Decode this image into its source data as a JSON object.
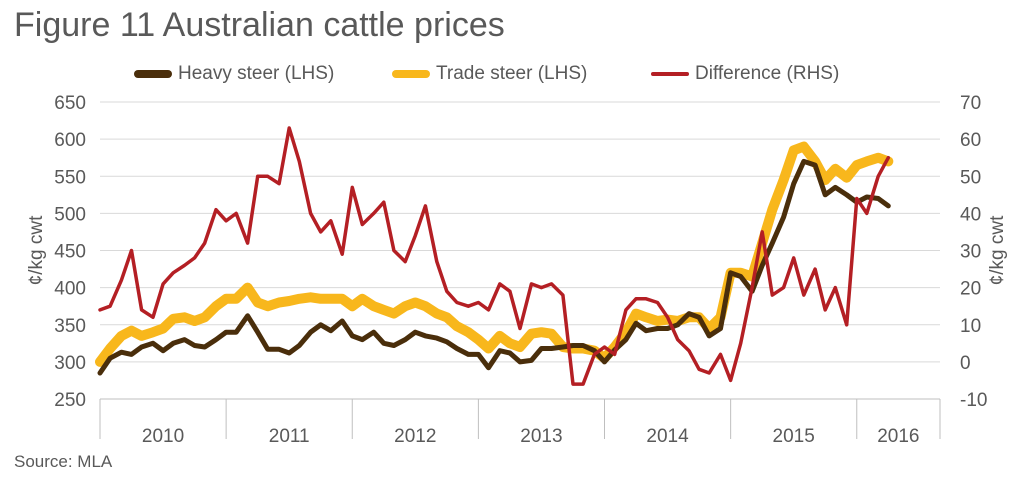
{
  "title": "Figure 11 Australian cattle prices",
  "source": "Source: MLA",
  "chart_data": {
    "type": "line",
    "title": "Figure 11 Australian cattle prices",
    "ylabel_left": "¢/kg cwt",
    "ylabel_right": "¢/kg cwt",
    "ylim_left": [
      250,
      650
    ],
    "ylim_right": [
      -10,
      70
    ],
    "yticks_left": [
      "250",
      "300",
      "350",
      "400",
      "450",
      "500",
      "550",
      "600",
      "650"
    ],
    "yticks_right": [
      "-10",
      "0",
      "10",
      "20",
      "30",
      "40",
      "50",
      "60",
      "70"
    ],
    "x_categories": [
      "2010",
      "2011",
      "2012",
      "2013",
      "2014",
      "2015",
      "2016"
    ],
    "x_range": [
      2010.0,
      2016.66
    ],
    "grid": true,
    "legend_position": "top",
    "series": [
      {
        "name": "Heavy steer (LHS)",
        "axis": "left",
        "color": "#4a2e0b",
        "x": [
          2010.0,
          2010.08,
          2010.17,
          2010.25,
          2010.33,
          2010.42,
          2010.5,
          2010.58,
          2010.67,
          2010.75,
          2010.83,
          2010.92,
          2011.0,
          2011.08,
          2011.17,
          2011.25,
          2011.33,
          2011.42,
          2011.5,
          2011.58,
          2011.67,
          2011.75,
          2011.83,
          2011.92,
          2012.0,
          2012.08,
          2012.17,
          2012.25,
          2012.33,
          2012.42,
          2012.5,
          2012.58,
          2012.67,
          2012.75,
          2012.83,
          2012.92,
          2013.0,
          2013.08,
          2013.17,
          2013.25,
          2013.33,
          2013.42,
          2013.5,
          2013.58,
          2013.67,
          2013.75,
          2013.83,
          2013.92,
          2014.0,
          2014.08,
          2014.17,
          2014.25,
          2014.33,
          2014.42,
          2014.5,
          2014.58,
          2014.67,
          2014.75,
          2014.83,
          2014.92,
          2015.0,
          2015.08,
          2015.17,
          2015.25,
          2015.33,
          2015.42,
          2015.5,
          2015.58,
          2015.67,
          2015.75,
          2015.83,
          2015.92,
          2016.0,
          2016.08,
          2016.17,
          2016.25
        ],
        "values": [
          285,
          305,
          313,
          310,
          320,
          325,
          315,
          325,
          330,
          322,
          320,
          330,
          340,
          340,
          362,
          340,
          317,
          317,
          312,
          322,
          340,
          350,
          342,
          355,
          335,
          330,
          340,
          325,
          322,
          330,
          340,
          335,
          332,
          327,
          318,
          310,
          310,
          292,
          315,
          312,
          300,
          302,
          318,
          318,
          320,
          322,
          322,
          315,
          300,
          316,
          330,
          352,
          342,
          345,
          345,
          350,
          365,
          360,
          335,
          345,
          420,
          415,
          395,
          430,
          460,
          495,
          540,
          570,
          565,
          525,
          535,
          525,
          515,
          522,
          520,
          510
        ]
      },
      {
        "name": "Trade steer (LHS)",
        "axis": "left",
        "color": "#f8b71c",
        "x": [
          2010.0,
          2010.08,
          2010.17,
          2010.25,
          2010.33,
          2010.42,
          2010.5,
          2010.58,
          2010.67,
          2010.75,
          2010.83,
          2010.92,
          2011.0,
          2011.08,
          2011.17,
          2011.25,
          2011.33,
          2011.42,
          2011.5,
          2011.58,
          2011.67,
          2011.75,
          2011.83,
          2011.92,
          2012.0,
          2012.08,
          2012.17,
          2012.25,
          2012.33,
          2012.42,
          2012.5,
          2012.58,
          2012.67,
          2012.75,
          2012.83,
          2012.92,
          2013.0,
          2013.08,
          2013.17,
          2013.25,
          2013.33,
          2013.42,
          2013.5,
          2013.58,
          2013.67,
          2013.75,
          2013.83,
          2013.92,
          2014.0,
          2014.08,
          2014.17,
          2014.25,
          2014.33,
          2014.42,
          2014.5,
          2014.58,
          2014.67,
          2014.75,
          2014.83,
          2014.92,
          2015.0,
          2015.08,
          2015.17,
          2015.25,
          2015.33,
          2015.42,
          2015.5,
          2015.58,
          2015.67,
          2015.75,
          2015.83,
          2015.92,
          2016.0,
          2016.08,
          2016.17,
          2016.25
        ],
        "values": [
          300,
          318,
          335,
          342,
          335,
          340,
          345,
          358,
          360,
          355,
          360,
          375,
          385,
          385,
          400,
          380,
          375,
          380,
          382,
          385,
          387,
          385,
          385,
          385,
          375,
          385,
          375,
          370,
          365,
          375,
          380,
          375,
          365,
          360,
          348,
          340,
          330,
          318,
          335,
          325,
          320,
          338,
          340,
          338,
          320,
          318,
          318,
          315,
          305,
          320,
          340,
          365,
          360,
          355,
          357,
          355,
          360,
          360,
          345,
          360,
          420,
          420,
          415,
          460,
          505,
          545,
          585,
          590,
          570,
          545,
          560,
          548,
          565,
          570,
          575,
          570
        ]
      },
      {
        "name": "Difference (RHS)",
        "axis": "right",
        "color": "#b41f24",
        "x": [
          2010.0,
          2010.08,
          2010.17,
          2010.25,
          2010.33,
          2010.42,
          2010.5,
          2010.58,
          2010.67,
          2010.75,
          2010.83,
          2010.92,
          2011.0,
          2011.08,
          2011.17,
          2011.25,
          2011.33,
          2011.42,
          2011.5,
          2011.58,
          2011.67,
          2011.75,
          2011.83,
          2011.92,
          2012.0,
          2012.08,
          2012.17,
          2012.25,
          2012.33,
          2012.42,
          2012.5,
          2012.58,
          2012.67,
          2012.75,
          2012.83,
          2012.92,
          2013.0,
          2013.08,
          2013.17,
          2013.25,
          2013.33,
          2013.42,
          2013.5,
          2013.58,
          2013.67,
          2013.75,
          2013.83,
          2013.92,
          2014.0,
          2014.08,
          2014.17,
          2014.25,
          2014.33,
          2014.42,
          2014.5,
          2014.58,
          2014.67,
          2014.75,
          2014.83,
          2014.92,
          2015.0,
          2015.08,
          2015.17,
          2015.25,
          2015.33,
          2015.42,
          2015.5,
          2015.58,
          2015.67,
          2015.75,
          2015.83,
          2015.92,
          2016.0,
          2016.08,
          2016.17,
          2016.25
        ],
        "values": [
          14,
          15,
          22,
          30,
          14,
          12,
          21,
          24,
          26,
          28,
          32,
          41,
          38,
          40,
          32,
          50,
          50,
          48,
          63,
          54,
          40,
          35,
          38,
          29,
          47,
          37,
          40,
          43,
          30,
          27,
          34,
          42,
          27,
          19,
          16,
          15,
          16,
          14,
          21,
          19,
          9,
          21,
          20,
          21,
          18,
          -6,
          -6,
          2,
          4,
          2,
          14,
          17,
          17,
          16,
          12,
          6,
          3,
          -2,
          -3,
          2,
          -5,
          5,
          20,
          35,
          18,
          20,
          28,
          18,
          25,
          14,
          20,
          10,
          44,
          40,
          50,
          55
        ]
      }
    ]
  }
}
